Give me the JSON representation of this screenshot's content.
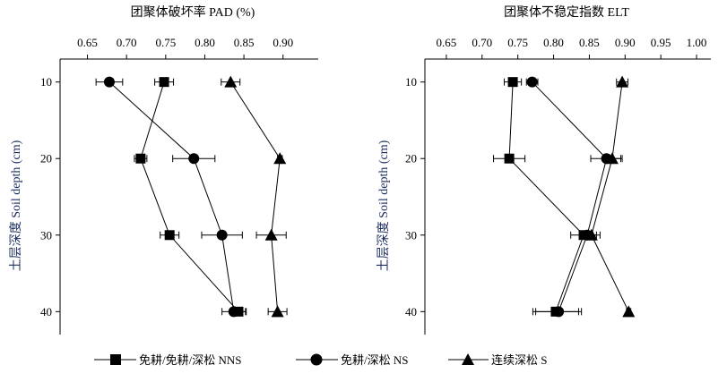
{
  "chart_data": [
    {
      "type": "line",
      "title": "团聚体破坏率 PAD (%)",
      "ylabel": "土层深度 Soil depth (cm)",
      "x_ticks": [
        "0.65",
        "0.70",
        "0.75",
        "0.80",
        "0.85",
        "0.90"
      ],
      "y_ticks": [
        "10",
        "20",
        "30",
        "40"
      ],
      "xlim": [
        0.615,
        0.945
      ],
      "ylim": [
        7,
        43
      ],
      "x_axis_position": "top",
      "y_reversed": true,
      "grid": false,
      "series": [
        {
          "name": "免耕/免耕/深松 NNS",
          "marker": "square",
          "depth": [
            10,
            20,
            30,
            40
          ],
          "value": [
            0.748,
            0.718,
            0.755,
            0.843
          ],
          "err": [
            0.012,
            0.008,
            0.012,
            0.01
          ]
        },
        {
          "name": "免耕/深松 NS",
          "marker": "circle",
          "depth": [
            10,
            20,
            30,
            40
          ],
          "value": [
            0.678,
            0.786,
            0.822,
            0.837
          ],
          "err": [
            0.017,
            0.027,
            0.026,
            0.015
          ]
        },
        {
          "name": "连续深松 S",
          "marker": "triangle",
          "depth": [
            10,
            20,
            30,
            40
          ],
          "value": [
            0.833,
            0.896,
            0.885,
            0.893
          ],
          "err": [
            0.012,
            0.003,
            0.019,
            0.012
          ]
        }
      ]
    },
    {
      "type": "line",
      "title": "团聚体不稳定指数 ELT",
      "ylabel": "土层深度 Soil depth (cm)",
      "x_ticks": [
        "0.65",
        "0.70",
        "0.75",
        "0.80",
        "0.85",
        "0.90",
        "0.95",
        "1.00"
      ],
      "y_ticks": [
        "10",
        "20",
        "30",
        "40"
      ],
      "xlim": [
        0.62,
        1.02
      ],
      "ylim": [
        7,
        43
      ],
      "x_axis_position": "top",
      "y_reversed": true,
      "grid": false,
      "series": [
        {
          "name": "免耕/免耕/深松 NNS",
          "marker": "square",
          "depth": [
            10,
            20,
            30,
            40
          ],
          "value": [
            0.743,
            0.738,
            0.842,
            0.803
          ],
          "err": [
            0.012,
            0.022,
            0.018,
            0.032
          ]
        },
        {
          "name": "免耕/深松 NS",
          "marker": "circle",
          "depth": [
            10,
            20,
            30,
            40
          ],
          "value": [
            0.77,
            0.874,
            0.847,
            0.807
          ],
          "err": [
            0.008,
            0.022,
            0.008,
            0.032
          ]
        },
        {
          "name": "连续深松 S",
          "marker": "triangle",
          "depth": [
            10,
            20,
            30,
            40
          ],
          "value": [
            0.896,
            0.882,
            0.853,
            0.905
          ],
          "err": [
            0.008,
            0.012,
            0.012,
            0.003
          ]
        }
      ]
    }
  ],
  "legend": {
    "placement": "bottom",
    "items": [
      {
        "label": "免耕/免耕/深松 NNS",
        "marker": "square"
      },
      {
        "label": "免耕/深松 NS",
        "marker": "circle"
      },
      {
        "label": "连续深松 S",
        "marker": "triangle"
      }
    ]
  },
  "colors": {
    "line": "#000000",
    "marker": "#000000",
    "ylabel": "#1a2c5e"
  }
}
